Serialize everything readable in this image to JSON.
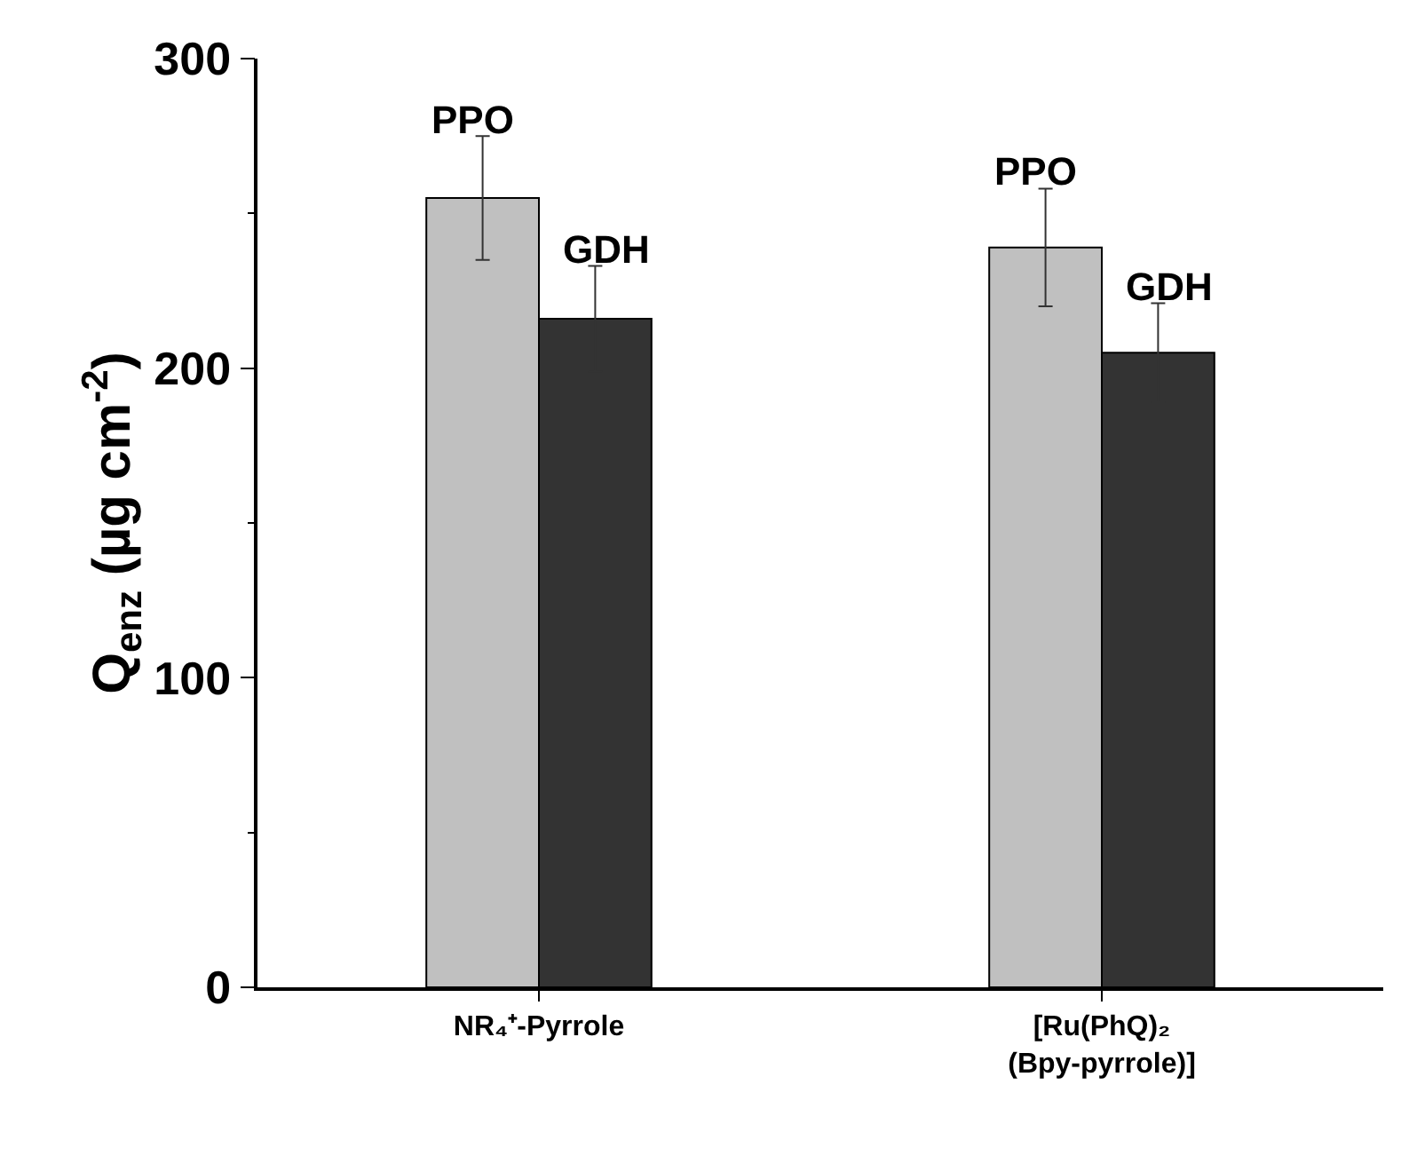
{
  "chart_data": {
    "type": "bar",
    "ylabel": "Q$_{enz}$ (µg cm$^{-2}$)",
    "categories": [
      "NR₄⁺-Pyrrole",
      "[Ru(PhQ)₂\n(Bpy-pyrrole)]"
    ],
    "series": [
      {
        "name": "PPO",
        "color": "#c0c0c0",
        "values": [
          255,
          239
        ],
        "errors": [
          20,
          19
        ]
      },
      {
        "name": "GDH",
        "color": "#333333",
        "values": [
          216,
          205
        ],
        "errors": [
          17,
          16
        ]
      }
    ],
    "ylim": [
      0,
      300
    ],
    "yticks": [
      0,
      100,
      200,
      300
    ],
    "legend": false
  }
}
